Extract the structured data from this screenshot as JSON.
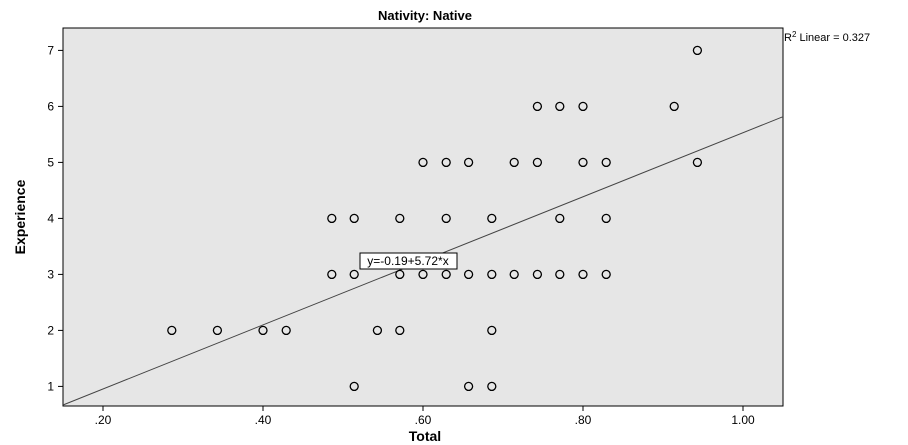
{
  "chart_data": {
    "type": "scatter",
    "title": "Nativity: Native",
    "xlabel": "Total",
    "ylabel": "Experience",
    "xlim": [
      0.15,
      1.05
    ],
    "ylim": [
      0.65,
      7.4
    ],
    "x_ticks": [
      0.2,
      0.4,
      0.6,
      0.8,
      1.0
    ],
    "x_tick_labels": [
      ".20",
      ".40",
      ".60",
      ".80",
      "1.00"
    ],
    "y_ticks": [
      1,
      2,
      3,
      4,
      5,
      6,
      7
    ],
    "y_tick_labels": [
      "1",
      "2",
      "3",
      "4",
      "5",
      "6",
      "7"
    ],
    "grid": false,
    "plot_background": "#e6e6e6",
    "marker_color": "#000000",
    "line_color": "#444444",
    "fit_line": {
      "intercept": -0.19,
      "slope": 5.72
    },
    "r2_label": {
      "prefix": "R",
      "sup": "2",
      "text": " Linear = 0.327"
    },
    "equation_label": "y=-0.19+5.72*x",
    "points": [
      [
        0.286,
        2
      ],
      [
        0.343,
        2
      ],
      [
        0.4,
        2
      ],
      [
        0.429,
        2
      ],
      [
        0.486,
        3
      ],
      [
        0.486,
        4
      ],
      [
        0.514,
        1
      ],
      [
        0.514,
        3
      ],
      [
        0.514,
        4
      ],
      [
        0.543,
        2
      ],
      [
        0.571,
        2
      ],
      [
        0.571,
        3
      ],
      [
        0.571,
        4
      ],
      [
        0.6,
        3
      ],
      [
        0.6,
        5
      ],
      [
        0.629,
        3
      ],
      [
        0.629,
        4
      ],
      [
        0.629,
        5
      ],
      [
        0.657,
        1
      ],
      [
        0.657,
        3
      ],
      [
        0.657,
        5
      ],
      [
        0.686,
        1
      ],
      [
        0.686,
        2
      ],
      [
        0.686,
        3
      ],
      [
        0.686,
        4
      ],
      [
        0.714,
        3
      ],
      [
        0.714,
        5
      ],
      [
        0.743,
        3
      ],
      [
        0.743,
        5
      ],
      [
        0.743,
        6
      ],
      [
        0.771,
        3
      ],
      [
        0.771,
        4
      ],
      [
        0.771,
        6
      ],
      [
        0.8,
        3
      ],
      [
        0.8,
        5
      ],
      [
        0.8,
        6
      ],
      [
        0.829,
        3
      ],
      [
        0.829,
        4
      ],
      [
        0.829,
        5
      ],
      [
        0.914,
        6
      ],
      [
        0.943,
        5
      ],
      [
        0.943,
        7
      ]
    ]
  }
}
